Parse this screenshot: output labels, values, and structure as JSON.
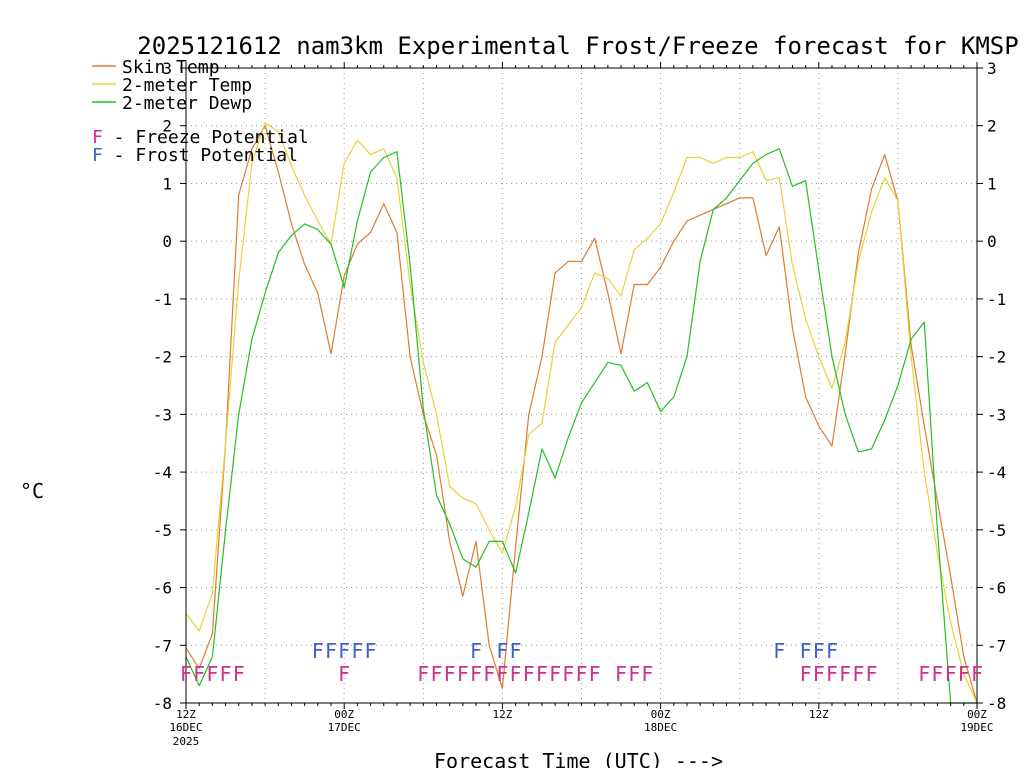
{
  "chart_data": {
    "type": "line",
    "title": "2025121612 nam3km Experimental Frost/Freeze forecast for KMSP",
    "xlabel": "Forecast Time (UTC) --->",
    "ylabel": "°C",
    "ylim": [
      -8,
      3
    ],
    "xlim": [
      0,
      60
    ],
    "grid": true,
    "y_ticks": [
      "-8",
      "-7",
      "-6",
      "-5",
      "-4",
      "-3",
      "-2",
      "-1",
      "0",
      "1",
      "2",
      "3"
    ],
    "x_ticks": [
      {
        "x": 0,
        "line1": "12Z",
        "line2": "16DEC",
        "line3": "2025"
      },
      {
        "x": 12,
        "line1": "00Z",
        "line2": "17DEC",
        "line3": ""
      },
      {
        "x": 24,
        "line1": "12Z",
        "line2": "",
        "line3": ""
      },
      {
        "x": 36,
        "line1": "00Z",
        "line2": "18DEC",
        "line3": ""
      },
      {
        "x": 48,
        "line1": "12Z",
        "line2": "",
        "line3": ""
      },
      {
        "x": 60,
        "line1": "00Z",
        "line2": "19DEC",
        "line3": ""
      }
    ],
    "legend": {
      "position": "top-left",
      "entries": [
        "Skin Temp",
        "2-meter Temp",
        "2-meter Dewp"
      ],
      "notes": [
        {
          "symbol": "F",
          "text": " - Freeze Potential",
          "color": "#d0308a"
        },
        {
          "symbol": "F",
          "text": " - Frost Potential",
          "color": "#4060c8"
        }
      ]
    },
    "series": [
      {
        "name": "Skin Temp",
        "color": "#e07a30",
        "x": [
          0,
          1,
          2,
          3,
          4,
          5,
          6,
          7,
          8,
          9,
          10,
          11,
          12,
          13,
          14,
          15,
          16,
          17,
          18,
          19,
          20,
          21,
          22,
          23,
          24,
          25,
          26,
          27,
          28,
          29,
          30,
          31,
          32,
          33,
          34,
          35,
          36,
          37,
          38,
          39,
          40,
          41,
          42,
          43,
          44,
          45,
          46,
          47,
          48,
          49,
          50,
          51,
          52,
          53,
          54,
          55,
          56,
          57,
          58,
          59,
          60
        ],
        "values": [
          -7.05,
          -7.4,
          -6.8,
          -3.5,
          0.8,
          1.6,
          2.0,
          1.2,
          0.3,
          -0.4,
          -0.9,
          -1.95,
          -0.6,
          -0.05,
          0.15,
          0.65,
          0.15,
          -2.0,
          -3.0,
          -3.7,
          -5.2,
          -6.15,
          -5.2,
          -7.0,
          -7.75,
          -5.3,
          -3.0,
          -2.0,
          -0.55,
          -0.35,
          -0.35,
          0.05,
          -0.9,
          -1.95,
          -0.75,
          -0.75,
          -0.45,
          0.0,
          0.35,
          0.45,
          0.55,
          0.65,
          0.75,
          0.75,
          -0.25,
          0.25,
          -1.5,
          -2.7,
          -3.2,
          -3.55,
          -1.95,
          -0.2,
          0.9,
          1.5,
          0.7,
          -1.8,
          -3.2,
          -4.5,
          -5.8,
          -7.2,
          -8.0
        ]
      },
      {
        "name": "2-meter Temp",
        "color": "#e8d23a",
        "x": [
          0,
          1,
          2,
          3,
          4,
          5,
          6,
          7,
          8,
          9,
          10,
          11,
          12,
          13,
          14,
          15,
          16,
          17,
          18,
          19,
          20,
          21,
          22,
          23,
          24,
          25,
          26,
          27,
          28,
          29,
          30,
          31,
          32,
          33,
          34,
          35,
          36,
          37,
          38,
          39,
          40,
          41,
          42,
          43,
          44,
          45,
          46,
          47,
          48,
          49,
          50,
          51,
          52,
          53,
          54,
          55,
          56,
          57,
          58,
          59,
          60
        ],
        "values": [
          -6.45,
          -6.75,
          -6.1,
          -3.5,
          -0.7,
          1.35,
          2.05,
          1.9,
          1.3,
          0.8,
          0.35,
          -0.05,
          1.35,
          1.75,
          1.5,
          1.6,
          1.1,
          -0.75,
          -2.1,
          -3.0,
          -4.25,
          -4.45,
          -4.55,
          -5.0,
          -5.4,
          -4.6,
          -3.35,
          -3.15,
          -1.75,
          -1.45,
          -1.15,
          -0.55,
          -0.65,
          -0.95,
          -0.15,
          0.05,
          0.3,
          0.85,
          1.45,
          1.45,
          1.35,
          1.45,
          1.45,
          1.55,
          1.05,
          1.1,
          -0.4,
          -1.35,
          -2.0,
          -2.55,
          -1.75,
          -0.35,
          0.5,
          1.1,
          0.7,
          -2.0,
          -4.0,
          -5.4,
          -6.6,
          -7.5,
          -8.0
        ]
      },
      {
        "name": "2-meter Dewp",
        "color": "#22c022",
        "x": [
          0,
          1,
          2,
          3,
          4,
          5,
          6,
          7,
          8,
          9,
          10,
          11,
          12,
          13,
          14,
          15,
          16,
          17,
          18,
          19,
          20,
          21,
          22,
          23,
          24,
          25,
          26,
          27,
          28,
          29,
          30,
          31,
          32,
          33,
          34,
          35,
          36,
          37,
          38,
          39,
          40,
          41,
          42,
          43,
          44,
          45,
          46,
          47,
          48,
          49,
          50,
          51,
          52,
          53,
          54,
          55,
          56,
          57,
          58,
          59,
          60
        ],
        "values": [
          -7.2,
          -7.7,
          -7.2,
          -5.0,
          -3.0,
          -1.7,
          -0.9,
          -0.2,
          0.1,
          0.3,
          0.2,
          -0.05,
          -0.8,
          0.35,
          1.2,
          1.45,
          1.55,
          -0.4,
          -2.9,
          -4.4,
          -4.9,
          -5.5,
          -5.65,
          -5.2,
          -5.2,
          -5.75,
          -4.7,
          -3.6,
          -4.1,
          -3.4,
          -2.8,
          -2.45,
          -2.1,
          -2.15,
          -2.6,
          -2.45,
          -2.95,
          -2.7,
          -2.0,
          -0.35,
          0.55,
          0.75,
          1.05,
          1.35,
          1.5,
          1.6,
          0.95,
          1.05,
          -0.5,
          -2.0,
          -3.0,
          -3.65,
          -3.6,
          -3.1,
          -2.5,
          -1.7,
          -1.4,
          -5.0,
          -8.0,
          -8.0,
          -8.0
        ]
      }
    ],
    "freeze_row": {
      "color": "#d0308a",
      "symbol": "F",
      "hours": [
        0,
        1,
        2,
        3,
        4,
        12,
        18,
        19,
        20,
        21,
        22,
        23,
        24,
        25,
        26,
        27,
        28,
        29,
        30,
        31,
        33,
        34,
        35,
        47,
        48,
        49,
        50,
        51,
        52,
        56,
        57,
        58,
        59,
        60
      ]
    },
    "frost_row": {
      "color": "#4060c8",
      "symbol": "F",
      "hours": [
        10,
        11,
        12,
        13,
        14,
        22,
        24,
        25,
        45,
        47,
        48,
        49
      ]
    }
  }
}
